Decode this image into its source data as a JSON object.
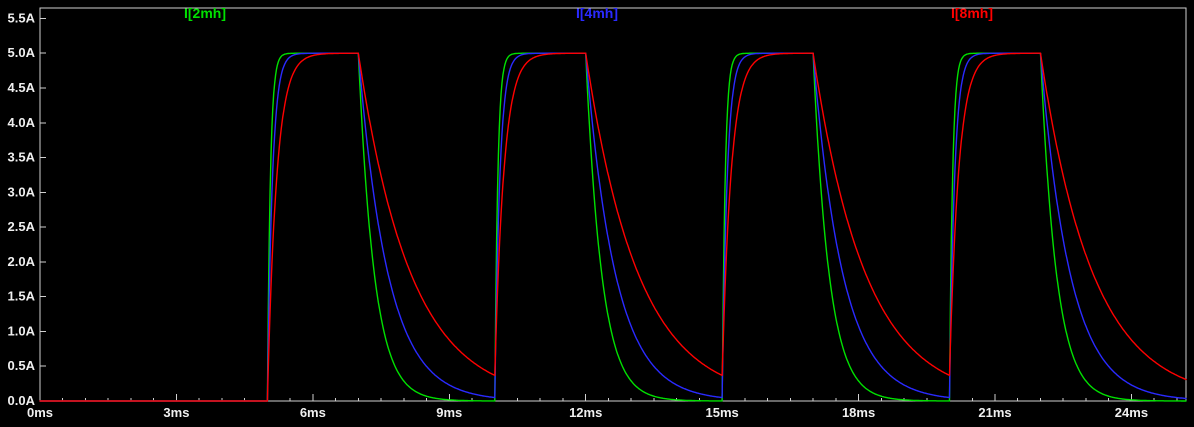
{
  "chart_data": {
    "type": "line",
    "title": "",
    "x_unit": "ms",
    "y_unit": "A",
    "xlim_ms": [
      0,
      25.2
    ],
    "ylim_A": [
      0,
      5.5
    ],
    "y_headroom_A": 0.15,
    "grid": false,
    "legend_position": "top",
    "x_minor_step_ms": 0.5,
    "x_major_step_ms": 3,
    "y_tick_step_A": 0.5,
    "x_ticks": [
      {
        "t": 0,
        "label": "0ms"
      },
      {
        "t": 3,
        "label": "3ms"
      },
      {
        "t": 6,
        "label": "6ms"
      },
      {
        "t": 9,
        "label": "9ms"
      },
      {
        "t": 12,
        "label": "12ms"
      },
      {
        "t": 15,
        "label": "15ms"
      },
      {
        "t": 18,
        "label": "18ms"
      },
      {
        "t": 21,
        "label": "21ms"
      },
      {
        "t": 24,
        "label": "24ms"
      }
    ],
    "y_ticks": [
      {
        "a": 5.5,
        "label": "5.5A"
      },
      {
        "a": 5.0,
        "label": "5.0A"
      },
      {
        "a": 4.5,
        "label": "4.5A"
      },
      {
        "a": 4.0,
        "label": "4.0A"
      },
      {
        "a": 3.5,
        "label": "3.5A"
      },
      {
        "a": 3.0,
        "label": "3.0A"
      },
      {
        "a": 2.5,
        "label": "2.5A"
      },
      {
        "a": 2.0,
        "label": "2.0A"
      },
      {
        "a": 1.5,
        "label": "1.5A"
      },
      {
        "a": 1.0,
        "label": "1.0A"
      },
      {
        "a": 0.5,
        "label": "0.5A"
      },
      {
        "a": 0.0,
        "label": "0.0A"
      }
    ],
    "series": [
      {
        "name": "I[2mh]",
        "inductance": "2mH",
        "color": "#00e000",
        "tau_rise_ms": 0.065,
        "tau_decay_ms": 0.35
      },
      {
        "name": "I[4mh]",
        "inductance": "4mH",
        "color": "#2a2aff",
        "tau_rise_ms": 0.11,
        "tau_decay_ms": 0.65
      },
      {
        "name": "I[8mh]",
        "inductance": "8mH",
        "color": "#ff0000",
        "tau_rise_ms": 0.2,
        "tau_decay_ms": 1.15
      }
    ],
    "waveform": {
      "amplitude_A": 5.0,
      "first_pulse_start_ms": 5.0,
      "on_duration_ms": 2.0,
      "period_ms": 5.0,
      "num_pulses": 4,
      "model": "i(t)=A+(i0-A)*exp(-(t-ts)/tau_rise) while pulse is on; i(t)=ipeak*exp(-(t-toff)/tau_decay) while off; zero before first pulse"
    },
    "colors": {
      "background": "#000000",
      "border": "#d0d0d0",
      "axis_text": "#f0f0f0"
    }
  }
}
